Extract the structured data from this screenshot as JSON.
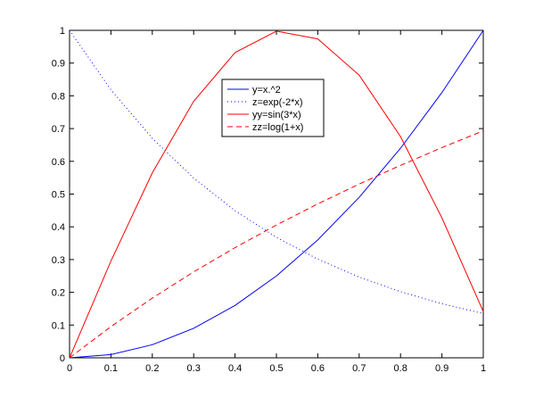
{
  "chart_data": {
    "type": "line",
    "title": "",
    "xlabel": "",
    "ylabel": "",
    "xlim": [
      0,
      1
    ],
    "ylim": [
      0,
      1
    ],
    "grid": false,
    "legend_position": "top-center",
    "x_ticks": [
      {
        "value": 0,
        "label": "0"
      },
      {
        "value": 0.1,
        "label": "0.1"
      },
      {
        "value": 0.2,
        "label": "0.2"
      },
      {
        "value": 0.3,
        "label": "0.3"
      },
      {
        "value": 0.4,
        "label": "0.4"
      },
      {
        "value": 0.5,
        "label": "0.5"
      },
      {
        "value": 0.6,
        "label": "0.6"
      },
      {
        "value": 0.7,
        "label": "0.7"
      },
      {
        "value": 0.8,
        "label": "0.8"
      },
      {
        "value": 0.9,
        "label": "0.9"
      },
      {
        "value": 1,
        "label": "1"
      }
    ],
    "y_ticks": [
      {
        "value": 0,
        "label": "0"
      },
      {
        "value": 0.1,
        "label": "0.1"
      },
      {
        "value": 0.2,
        "label": "0.2"
      },
      {
        "value": 0.3,
        "label": "0.3"
      },
      {
        "value": 0.4,
        "label": "0.4"
      },
      {
        "value": 0.5,
        "label": "0.5"
      },
      {
        "value": 0.6,
        "label": "0.6"
      },
      {
        "value": 0.7,
        "label": "0.7"
      },
      {
        "value": 0.8,
        "label": "0.8"
      },
      {
        "value": 0.9,
        "label": "0.9"
      },
      {
        "value": 1,
        "label": "1"
      }
    ],
    "x": [
      0,
      0.1,
      0.2,
      0.3,
      0.4,
      0.5,
      0.6,
      0.7,
      0.8,
      0.9,
      1.0
    ],
    "series": [
      {
        "name": "y=x.^2",
        "color": "#0000ff",
        "line_style": "solid",
        "values": [
          0,
          0.01,
          0.04,
          0.09,
          0.16,
          0.25,
          0.36,
          0.49,
          0.64,
          0.81,
          1.0
        ]
      },
      {
        "name": "z=exp(-2*x)",
        "color": "#0000ff",
        "line_style": "dotted",
        "values": [
          1.0,
          0.8187,
          0.6703,
          0.5488,
          0.4493,
          0.3679,
          0.3012,
          0.2466,
          0.2019,
          0.1653,
          0.1353
        ]
      },
      {
        "name": "yy=sin(3*x)",
        "color": "#ff0000",
        "line_style": "solid",
        "values": [
          0,
          0.2955,
          0.5646,
          0.7833,
          0.932,
          0.9975,
          0.9738,
          0.8632,
          0.6755,
          0.4274,
          0.1411
        ]
      },
      {
        "name": "zz=log(1+x)",
        "color": "#ff0000",
        "line_style": "dashed",
        "values": [
          0,
          0.0953,
          0.1823,
          0.2624,
          0.3365,
          0.4055,
          0.47,
          0.5306,
          0.5878,
          0.6419,
          0.6931
        ]
      }
    ]
  }
}
